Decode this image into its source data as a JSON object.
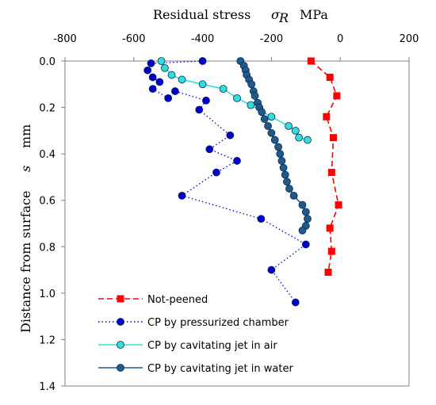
{
  "chart_data": {
    "type": "scatter",
    "x_axis": {
      "title": "Residual stress",
      "symbol": "σ",
      "symbol_sub": "R",
      "unit": "MPa",
      "position": "top",
      "range": [
        -800,
        200
      ],
      "ticks": [
        -800,
        -600,
        -400,
        -200,
        0,
        200
      ]
    },
    "y_axis": {
      "title": "Distance from surface",
      "symbol": "s",
      "unit": "mm",
      "reversed": true,
      "range": [
        0.0,
        1.4
      ],
      "ticks": [
        "0.0",
        "0.2",
        "0.4",
        "0.6",
        "0.8",
        "1.0",
        "1.2",
        "1.4"
      ]
    },
    "legend_position": "bottom-left",
    "series": [
      {
        "name": "Not-peened",
        "color": "#ff0000",
        "marker": "square",
        "line": "dash",
        "points": [
          [
            -85,
            0.0
          ],
          [
            -30,
            0.07
          ],
          [
            -10,
            0.15
          ],
          [
            -40,
            0.24
          ],
          [
            -20,
            0.33
          ],
          [
            -25,
            0.48
          ],
          [
            -5,
            0.62
          ],
          [
            -30,
            0.72
          ],
          [
            -25,
            0.82
          ],
          [
            -35,
            0.91
          ]
        ]
      },
      {
        "name": "CP by pressurized chamber",
        "color": "#0000cc",
        "marker": "circle",
        "line": "dot",
        "points": [
          [
            -400,
            0.0
          ],
          [
            -550,
            0.01
          ],
          [
            -560,
            0.04
          ],
          [
            -545,
            0.07
          ],
          [
            -525,
            0.09
          ],
          [
            -545,
            0.12
          ],
          [
            -500,
            0.16
          ],
          [
            -480,
            0.13
          ],
          [
            -390,
            0.17
          ],
          [
            -410,
            0.21
          ],
          [
            -320,
            0.32
          ],
          [
            -380,
            0.38
          ],
          [
            -300,
            0.43
          ],
          [
            -360,
            0.48
          ],
          [
            -460,
            0.58
          ],
          [
            -230,
            0.68
          ],
          [
            -100,
            0.79
          ],
          [
            -200,
            0.9
          ],
          [
            -130,
            1.04
          ]
        ]
      },
      {
        "name": "CP by cavitating jet in air",
        "color": "#33dddd",
        "marker": "circle",
        "line": "solid",
        "points": [
          [
            -520,
            0.0
          ],
          [
            -510,
            0.03
          ],
          [
            -490,
            0.06
          ],
          [
            -460,
            0.08
          ],
          [
            -400,
            0.1
          ],
          [
            -340,
            0.12
          ],
          [
            -300,
            0.16
          ],
          [
            -260,
            0.19
          ],
          [
            -200,
            0.24
          ],
          [
            -150,
            0.28
          ],
          [
            -130,
            0.3
          ],
          [
            -120,
            0.33
          ],
          [
            -95,
            0.34
          ]
        ]
      },
      {
        "name": "CP by cavitating jet in water",
        "color": "#1f5a8c",
        "marker": "circle",
        "line": "solid",
        "points": [
          [
            -290,
            0.0
          ],
          [
            -280,
            0.02
          ],
          [
            -275,
            0.04
          ],
          [
            -272,
            0.06
          ],
          [
            -265,
            0.08
          ],
          [
            -258,
            0.1
          ],
          [
            -252,
            0.13
          ],
          [
            -248,
            0.15
          ],
          [
            -240,
            0.18
          ],
          [
            -235,
            0.2
          ],
          [
            -228,
            0.22
          ],
          [
            -220,
            0.25
          ],
          [
            -210,
            0.28
          ],
          [
            -200,
            0.31
          ],
          [
            -190,
            0.34
          ],
          [
            -180,
            0.37
          ],
          [
            -175,
            0.4
          ],
          [
            -170,
            0.43
          ],
          [
            -165,
            0.46
          ],
          [
            -160,
            0.49
          ],
          [
            -155,
            0.52
          ],
          [
            -148,
            0.55
          ],
          [
            -135,
            0.58
          ],
          [
            -110,
            0.62
          ],
          [
            -100,
            0.65
          ],
          [
            -95,
            0.68
          ],
          [
            -100,
            0.71
          ],
          [
            -110,
            0.73
          ]
        ]
      }
    ]
  }
}
